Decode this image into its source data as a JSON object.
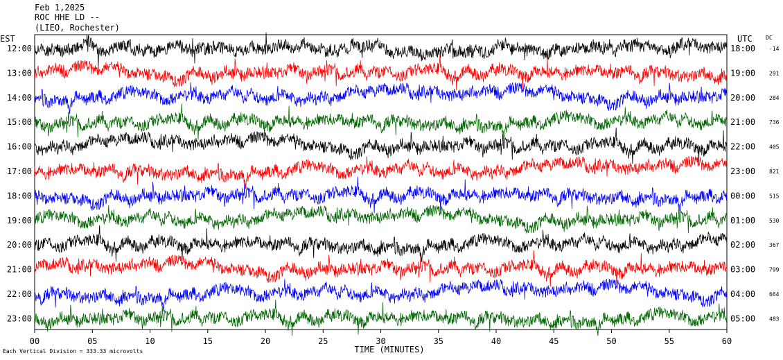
{
  "header": {
    "date": "Feb 1,2025",
    "station": "ROC HHE LD --",
    "location": "(LIEO, Rochester)"
  },
  "left_axis_title": "EST",
  "right_axis_title": "UTC",
  "dc_title": "DC",
  "footer_note": "Each Vertical Division = 333.33 microvolts",
  "chart_data": {
    "type": "line",
    "xlabel": "TIME (MINUTES)",
    "xlim": [
      0,
      60
    ],
    "x_ticks": [
      "00",
      "05",
      "10",
      "15",
      "20",
      "25",
      "30",
      "35",
      "40",
      "45",
      "50",
      "55",
      "60"
    ],
    "rows": [
      {
        "est": "12:00",
        "utc": "18:00",
        "dc": "-14",
        "color": "#000000"
      },
      {
        "est": "13:00",
        "utc": "19:00",
        "dc": "291",
        "color": "#ff0000"
      },
      {
        "est": "14:00",
        "utc": "20:00",
        "dc": "284",
        "color": "#0000ff"
      },
      {
        "est": "15:00",
        "utc": "21:00",
        "dc": "736",
        "color": "#006400"
      },
      {
        "est": "16:00",
        "utc": "22:00",
        "dc": "405",
        "color": "#000000"
      },
      {
        "est": "17:00",
        "utc": "23:00",
        "dc": "821",
        "color": "#ff0000"
      },
      {
        "est": "18:00",
        "utc": "00:00",
        "dc": "515",
        "color": "#0000ff"
      },
      {
        "est": "19:00",
        "utc": "01:00",
        "dc": "530",
        "color": "#006400"
      },
      {
        "est": "20:00",
        "utc": "02:00",
        "dc": "367",
        "color": "#000000"
      },
      {
        "est": "21:00",
        "utc": "03:00",
        "dc": "799",
        "color": "#ff0000"
      },
      {
        "est": "22:00",
        "utc": "04:00",
        "dc": "664",
        "color": "#0000ff"
      },
      {
        "est": "23:00",
        "utc": "05:00",
        "dc": "483",
        "color": "#006400"
      }
    ]
  }
}
